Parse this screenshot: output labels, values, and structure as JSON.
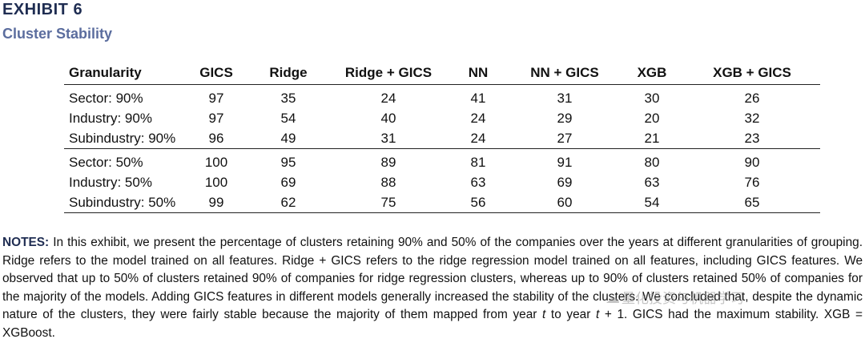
{
  "exhibit": {
    "label": "EXHIBIT 6",
    "title": "Cluster Stability"
  },
  "table": {
    "headers": [
      "Granularity",
      "GICS",
      "Ridge",
      "Ridge + GICS",
      "NN",
      "NN + GICS",
      "XGB",
      "XGB + GICS"
    ],
    "rows": [
      [
        "Sector: 90%",
        "97",
        "35",
        "24",
        "41",
        "31",
        "30",
        "26"
      ],
      [
        "Industry: 90%",
        "97",
        "54",
        "40",
        "24",
        "29",
        "20",
        "32"
      ],
      [
        "Subindustry: 90%",
        "96",
        "49",
        "31",
        "24",
        "27",
        "21",
        "23"
      ],
      [
        "Sector: 50%",
        "100",
        "95",
        "89",
        "81",
        "91",
        "80",
        "90"
      ],
      [
        "Industry: 50%",
        "100",
        "69",
        "88",
        "63",
        "69",
        "63",
        "76"
      ],
      [
        "Subindustry: 50%",
        "99",
        "62",
        "75",
        "56",
        "60",
        "54",
        "65"
      ]
    ]
  },
  "notes": {
    "label": "NOTES:",
    "text_1": " In this exhibit, we present the percentage of clusters retaining 90% and 50% of the companies over the years at different granularities of grouping. Ridge refers to the model trained on all features. Ridge + GICS refers to the ridge regression model trained on all features, including GICS features. We observed that up to 50% of clusters retained 90% of companies for ridge regression clusters, whereas up to 90% of clusters retained 50% of companies for the majority of the models. Adding GICS features in different models generally increased the stability of the clusters. We concluded that, despite the dynamic nature of the clusters, they were fairly stable because the majority of them mapped from year ",
    "var_t": "t",
    "text_2": " to year ",
    "var_t1": "t",
    "text_3": " + 1. GICS had the maximum stability. XGB = XGBoost."
  },
  "watermark": {
    "text": "量化投资与机器学习",
    "icon": "wechat-icon"
  }
}
